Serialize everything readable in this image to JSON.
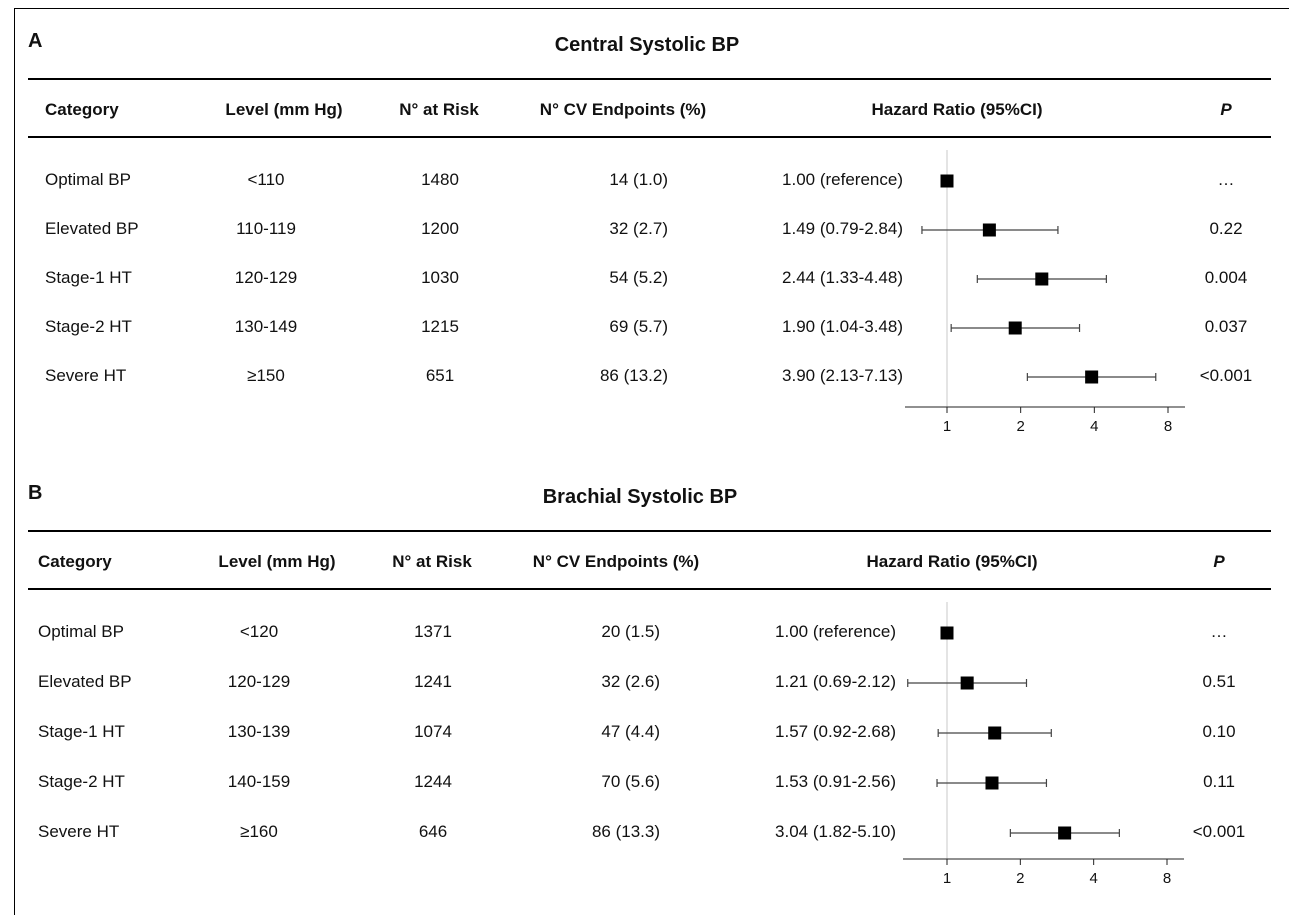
{
  "chart_data": [
    {
      "type": "table",
      "panel_letter": "A",
      "title": "Central Systolic BP",
      "columns": [
        "Category",
        "Level (mm Hg)",
        "N° at Risk",
        "N° CV Endpoints (%)",
        "Hazard Ratio (95%CI)",
        "P"
      ],
      "rows": [
        {
          "category": "Optimal BP",
          "level": "<110",
          "at_risk": "1480",
          "endpoints": "14 (1.0)",
          "hr_text": "1.00 (reference)",
          "hr": 1.0,
          "lo": 1.0,
          "hi": 1.0,
          "p": "…"
        },
        {
          "category": "Elevated BP",
          "level": "110-119",
          "at_risk": "1200",
          "endpoints": "32 (2.7)",
          "hr_text": "1.49 (0.79-2.84)",
          "hr": 1.49,
          "lo": 0.79,
          "hi": 2.84,
          "p": "0.22"
        },
        {
          "category": "Stage-1 HT",
          "level": "120-129",
          "at_risk": "1030",
          "endpoints": "54 (5.2)",
          "hr_text": "2.44 (1.33-4.48)",
          "hr": 2.44,
          "lo": 1.33,
          "hi": 4.48,
          "p": "0.004"
        },
        {
          "category": "Stage-2 HT",
          "level": "130-149",
          "at_risk": "1215",
          "endpoints": "69 (5.7)",
          "hr_text": "1.90 (1.04-3.48)",
          "hr": 1.9,
          "lo": 1.04,
          "hi": 3.48,
          "p": "0.037"
        },
        {
          "category": "Severe HT",
          "level": "≥150",
          "at_risk": "651",
          "endpoints": "86 (13.2)",
          "hr_text": "3.90 (2.13-7.13)",
          "hr": 3.9,
          "lo": 2.13,
          "hi": 7.13,
          "p": "<0.001"
        }
      ],
      "x_scale": "log2",
      "xticks": [
        1,
        2,
        4,
        8
      ],
      "xtick_labels": [
        "1",
        "2",
        "4",
        "8"
      ],
      "reference_line": 1
    },
    {
      "type": "table",
      "panel_letter": "B",
      "title": "Brachial Systolic BP",
      "columns": [
        "Category",
        "Level (mm Hg)",
        "N° at Risk",
        "N° CV Endpoints (%)",
        "Hazard Ratio (95%CI)",
        "P"
      ],
      "rows": [
        {
          "category": "Optimal BP",
          "level": "<120",
          "at_risk": "1371",
          "endpoints": "20 (1.5)",
          "hr_text": "1.00 (reference)",
          "hr": 1.0,
          "lo": 1.0,
          "hi": 1.0,
          "p": "…"
        },
        {
          "category": "Elevated BP",
          "level": "120-129",
          "at_risk": "1241",
          "endpoints": "32 (2.6)",
          "hr_text": "1.21 (0.69-2.12)",
          "hr": 1.21,
          "lo": 0.69,
          "hi": 2.12,
          "p": "0.51"
        },
        {
          "category": "Stage-1 HT",
          "level": "130-139",
          "at_risk": "1074",
          "endpoints": "47 (4.4)",
          "hr_text": "1.57 (0.92-2.68)",
          "hr": 1.57,
          "lo": 0.92,
          "hi": 2.68,
          "p": "0.10"
        },
        {
          "category": "Stage-2 HT",
          "level": "140-159",
          "at_risk": "1244",
          "endpoints": "70 (5.6)",
          "hr_text": "1.53 (0.91-2.56)",
          "hr": 1.53,
          "lo": 0.91,
          "hi": 2.56,
          "p": "0.11"
        },
        {
          "category": "Severe HT",
          "level": "≥160",
          "at_risk": "646",
          "endpoints": "86 (13.3)",
          "hr_text": "3.04 (1.82-5.10)",
          "hr": 3.04,
          "lo": 1.82,
          "hi": 5.1,
          "p": "<0.001"
        }
      ],
      "x_scale": "log2",
      "xticks": [
        1,
        2,
        4,
        8
      ],
      "xtick_labels": [
        "1",
        "2",
        "4",
        "8"
      ],
      "reference_line": 1
    }
  ]
}
